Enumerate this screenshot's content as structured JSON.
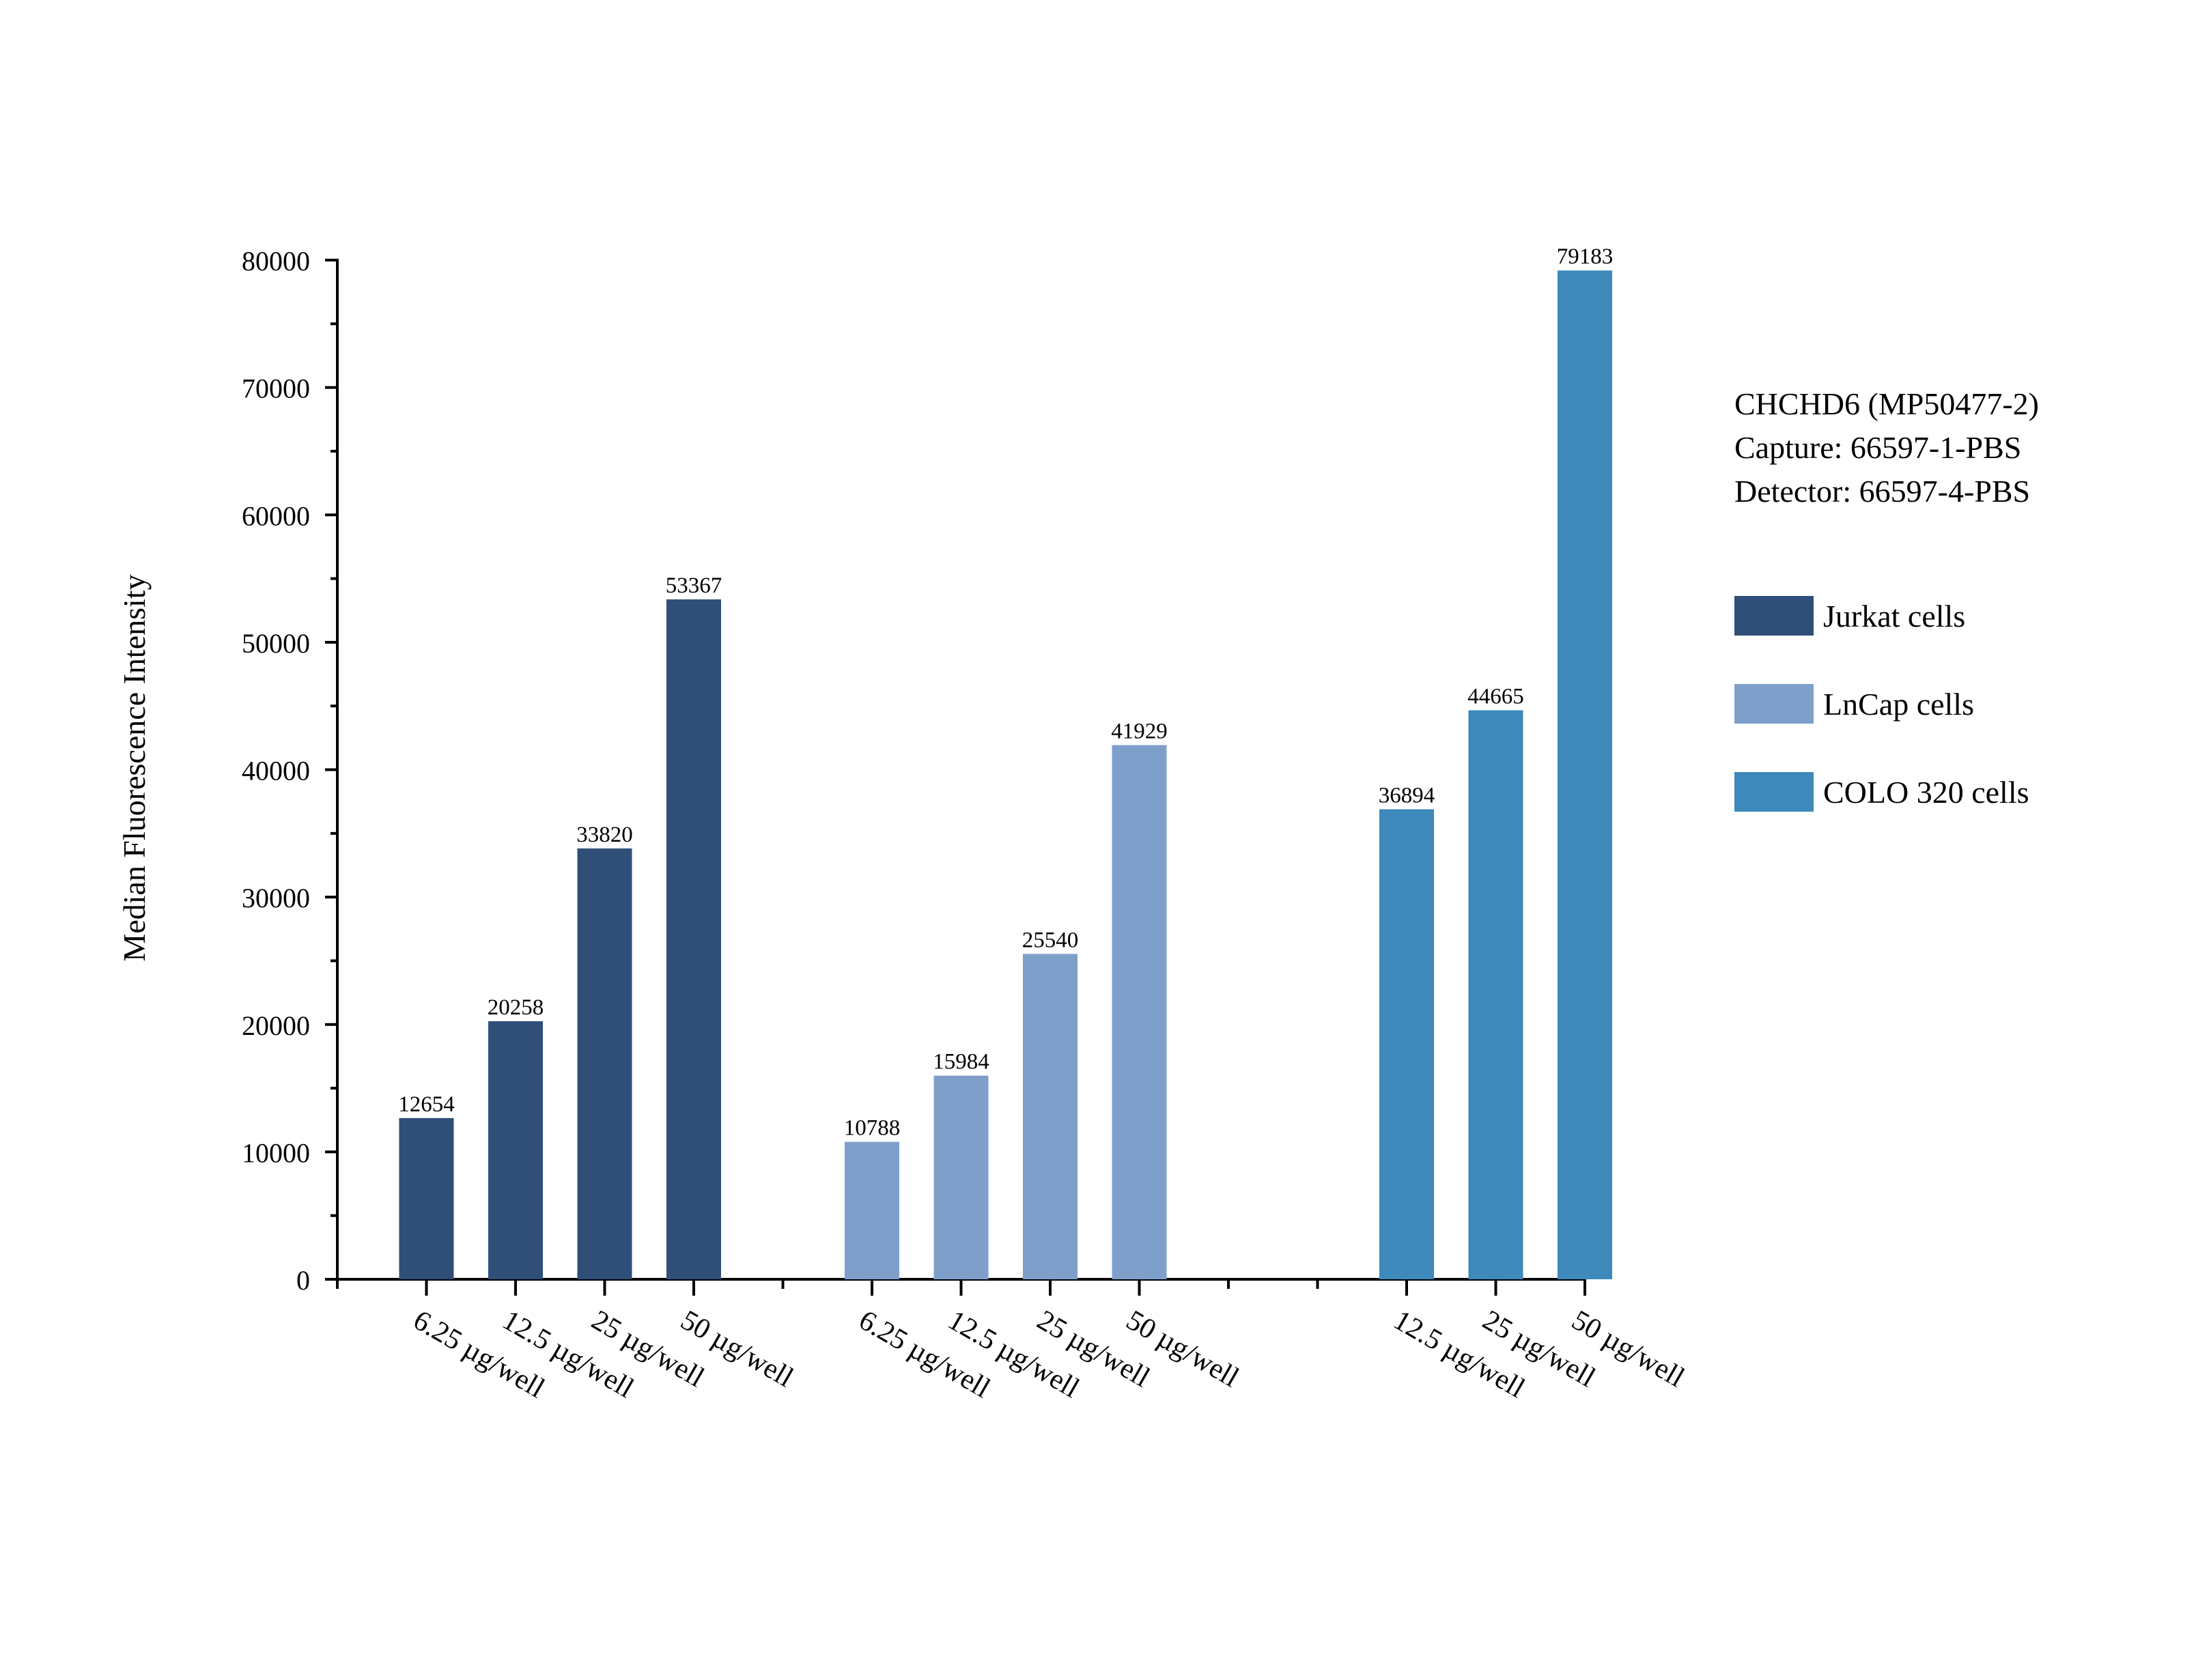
{
  "chart_data": {
    "type": "bar",
    "ylabel": "Median Fluorescence Intensity",
    "xlabel": "",
    "ylim": [
      0,
      80000
    ],
    "yticks": [
      0,
      10000,
      20000,
      30000,
      40000,
      50000,
      60000,
      70000,
      80000
    ],
    "grid": false,
    "legend_position": "right",
    "info_lines": [
      "CHCHD6 (MP50477-2)",
      "Capture: 66597-1-PBS",
      "Detector: 66597-4-PBS"
    ],
    "series": [
      {
        "name": "Jurkat cells",
        "color": "#2f4f79",
        "categories": [
          "6.25 µg/well",
          "12.5 µg/well",
          "25 µg/well",
          "50 µg/well"
        ],
        "values": [
          12654,
          20258,
          33820,
          53367
        ]
      },
      {
        "name": "LnCap cells",
        "color": "#7f9fcb",
        "categories": [
          "6.25 µg/well",
          "12.5 µg/well",
          "25 µg/well",
          "50 µg/well"
        ],
        "values": [
          10788,
          15984,
          25540,
          41929
        ]
      },
      {
        "name": "COLO 320 cells",
        "color": "#3d89b9",
        "categories": [
          "12.5 µg/well",
          "25 µg/well",
          "50 µg/well"
        ],
        "values": [
          36894,
          44665,
          79183
        ]
      }
    ]
  }
}
